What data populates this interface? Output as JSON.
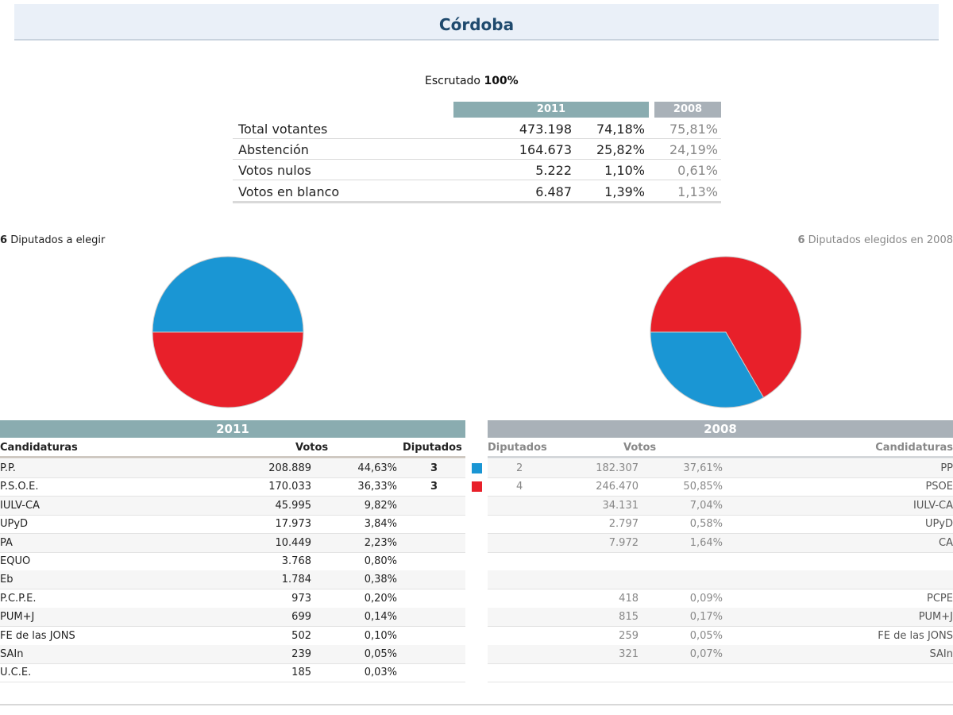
{
  "page": {
    "title": "Córdoba",
    "scrutiny_label": "Escrutado",
    "scrutiny_value": "100%"
  },
  "summary": {
    "year_2011": "2011",
    "year_2008": "2008",
    "rows": [
      {
        "label": "Total votantes",
        "votes_2011": "473.198",
        "pct_2011": "74,18%",
        "pct_2008": "75,81%"
      },
      {
        "label": "Abstención",
        "votes_2011": "164.673",
        "pct_2011": "25,82%",
        "pct_2008": "24,19%"
      },
      {
        "label": "Votos nulos",
        "votes_2011": "5.222",
        "pct_2011": "1,10%",
        "pct_2008": "0,61%"
      },
      {
        "label": "Votos en blanco",
        "votes_2011": "6.487",
        "pct_2011": "1,39%",
        "pct_2008": "1,13%"
      }
    ]
  },
  "seats_left": {
    "count": "6",
    "text": "Diputados a elegir"
  },
  "seats_right": {
    "count": "6",
    "text": "Diputados elegidos en 2008"
  },
  "colors": {
    "pp": "#1a96d4",
    "psoe": "#e8202a",
    "teal_header": "#8aacb0",
    "gray_header": "#a9b1b8"
  },
  "chart_data": [
    {
      "type": "pie",
      "title": "Diputados a elegir 2011",
      "categories": [
        "P.P.",
        "P.S.O.E."
      ],
      "values": [
        3,
        3
      ],
      "colors": [
        "#1a96d4",
        "#e8202a"
      ]
    },
    {
      "type": "pie",
      "title": "Diputados elegidos en 2008",
      "categories": [
        "P.P.",
        "P.S.O.E."
      ],
      "values": [
        2,
        4
      ],
      "colors": [
        "#1a96d4",
        "#e8202a"
      ]
    }
  ],
  "results": {
    "year_2011": "2011",
    "year_2008": "2008",
    "headers": {
      "candidaturas": "Candidaturas",
      "votos": "Votos",
      "diputados": "Diputados"
    },
    "rows": [
      {
        "party": "P.P.",
        "v2011": "208.889",
        "p2011": "44,63%",
        "d2011": "3",
        "swatch": "#1a96d4",
        "d2008": "2",
        "v2008": "182.307",
        "p2008": "37,61%",
        "party2008": "PP"
      },
      {
        "party": "P.S.O.E.",
        "v2011": "170.033",
        "p2011": "36,33%",
        "d2011": "3",
        "swatch": "#e8202a",
        "d2008": "4",
        "v2008": "246.470",
        "p2008": "50,85%",
        "party2008": "PSOE"
      },
      {
        "party": "IULV-CA",
        "v2011": "45.995",
        "p2011": "9,82%",
        "d2011": "",
        "swatch": "",
        "d2008": "",
        "v2008": "34.131",
        "p2008": "7,04%",
        "party2008": "IULV-CA"
      },
      {
        "party": "UPyD",
        "v2011": "17.973",
        "p2011": "3,84%",
        "d2011": "",
        "swatch": "",
        "d2008": "",
        "v2008": "2.797",
        "p2008": "0,58%",
        "party2008": "UPyD"
      },
      {
        "party": "PA",
        "v2011": "10.449",
        "p2011": "2,23%",
        "d2011": "",
        "swatch": "",
        "d2008": "",
        "v2008": "7.972",
        "p2008": "1,64%",
        "party2008": "CA"
      },
      {
        "party": "EQUO",
        "v2011": "3.768",
        "p2011": "0,80%",
        "d2011": "",
        "swatch": "",
        "d2008": "",
        "v2008": "",
        "p2008": "",
        "party2008": ""
      },
      {
        "party": "Eb",
        "v2011": "1.784",
        "p2011": "0,38%",
        "d2011": "",
        "swatch": "",
        "d2008": "",
        "v2008": "",
        "p2008": "",
        "party2008": ""
      },
      {
        "party": "P.C.P.E.",
        "v2011": "973",
        "p2011": "0,20%",
        "d2011": "",
        "swatch": "",
        "d2008": "",
        "v2008": "418",
        "p2008": "0,09%",
        "party2008": "PCPE"
      },
      {
        "party": "PUM+J",
        "v2011": "699",
        "p2011": "0,14%",
        "d2011": "",
        "swatch": "",
        "d2008": "",
        "v2008": "815",
        "p2008": "0,17%",
        "party2008": "PUM+J"
      },
      {
        "party": "FE de las JONS",
        "v2011": "502",
        "p2011": "0,10%",
        "d2011": "",
        "swatch": "",
        "d2008": "",
        "v2008": "259",
        "p2008": "0,05%",
        "party2008": "FE de las JONS"
      },
      {
        "party": "SAIn",
        "v2011": "239",
        "p2011": "0,05%",
        "d2011": "",
        "swatch": "",
        "d2008": "",
        "v2008": "321",
        "p2008": "0,07%",
        "party2008": "SAIn"
      },
      {
        "party": "U.C.E.",
        "v2011": "185",
        "p2011": "0,03%",
        "d2011": "",
        "swatch": "",
        "d2008": "",
        "v2008": "",
        "p2008": "",
        "party2008": ""
      }
    ]
  }
}
